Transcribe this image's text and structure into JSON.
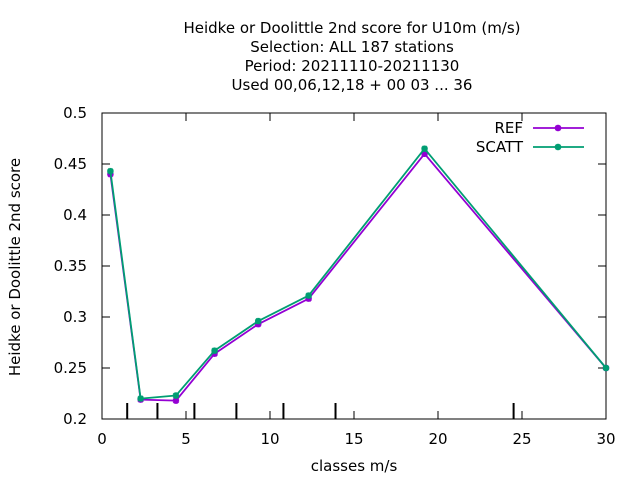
{
  "chart_data": {
    "type": "line",
    "title_lines": [
      "Heidke or Doolittle 2nd score  for U10m (m/s)",
      "Selection: ALL    187 stations",
      "Period: 20211110-20211130",
      "Used  00,06,12,18 + 00 03 ... 36"
    ],
    "xlabel": "classes m/s",
    "ylabel": "Heidke or Doolittle 2nd score",
    "xlim": [
      0,
      30
    ],
    "ylim": [
      0.2,
      0.5
    ],
    "xticks": [
      0,
      5,
      10,
      15,
      20,
      25,
      30
    ],
    "yticks": [
      0.2,
      0.25,
      0.3,
      0.35,
      0.4,
      0.45,
      0.5
    ],
    "xtick_labels": [
      "0",
      "5",
      "10",
      "15",
      "20",
      "25",
      "30"
    ],
    "ytick_labels": [
      "0.2",
      "0.25",
      "0.3",
      "0.35",
      "0.4",
      "0.45",
      "0.5"
    ],
    "class_boundaries": [
      1.5,
      3.3,
      5.5,
      8.0,
      10.8,
      13.9,
      24.5
    ],
    "legend_position": "top-right",
    "series": [
      {
        "name": "REF",
        "color": "#9400d3",
        "x": [
          0.5,
          2.3,
          4.4,
          6.7,
          9.3,
          12.3,
          19.2,
          30
        ],
        "y": [
          0.44,
          0.219,
          0.218,
          0.264,
          0.293,
          0.318,
          0.46,
          0.25
        ]
      },
      {
        "name": "SCATT",
        "color": "#009e73",
        "x": [
          0.5,
          2.3,
          4.4,
          6.7,
          9.3,
          12.3,
          19.2,
          30
        ],
        "y": [
          0.443,
          0.22,
          0.223,
          0.267,
          0.296,
          0.321,
          0.465,
          0.25
        ]
      }
    ]
  }
}
